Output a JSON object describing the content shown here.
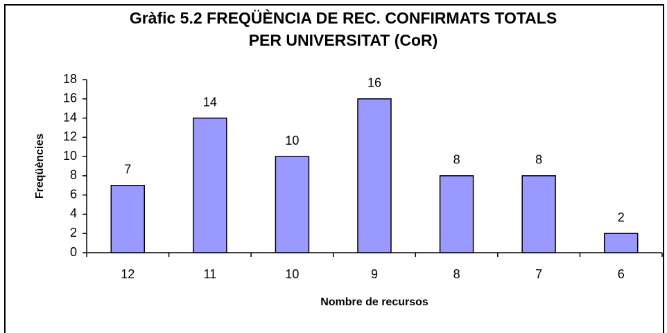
{
  "chart_data": {
    "type": "bar",
    "title": [
      "Gràfic 5.2 FREQÜÈNCIA DE REC. CONFIRMATS TOTALS",
      "PER UNIVERSITAT (CoR)"
    ],
    "x_label": "Nombre de recursos",
    "y_label": "Freqüències",
    "categories": [
      "12",
      "11",
      "10",
      "9",
      "8",
      "7",
      "6"
    ],
    "values": [
      7,
      14,
      10,
      16,
      8,
      8,
      2
    ],
    "color": "#9999ff",
    "ylim": [
      0,
      18
    ],
    "yticks": [
      0,
      2,
      4,
      6,
      8,
      10,
      12,
      14,
      16,
      18
    ],
    "grid": false
  }
}
